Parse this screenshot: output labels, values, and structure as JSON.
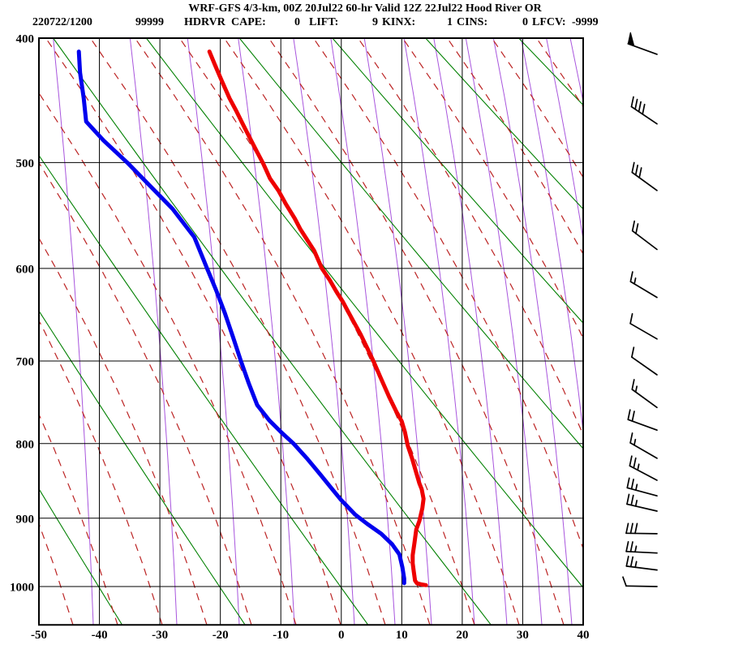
{
  "title": "WRF-GFS 4/3-km, 00Z 20Jul22 60-hr Valid 12Z 22Jul22 Hood River OR",
  "station_line": {
    "tokens": [
      {
        "x": 40,
        "text": "220722/1200"
      },
      {
        "x": 167,
        "text": "99999"
      },
      {
        "x": 227,
        "text": "HDRVR"
      },
      {
        "x": 285,
        "text": "CAPE:"
      },
      {
        "x": 363,
        "text": "0"
      },
      {
        "x": 381,
        "text": "LIFT:"
      },
      {
        "x": 459,
        "text": "9"
      },
      {
        "x": 471,
        "text": "KINX:"
      },
      {
        "x": 551,
        "text": "1"
      },
      {
        "x": 563,
        "text": "CINS:"
      },
      {
        "x": 644,
        "text": "0"
      },
      {
        "x": 656,
        "text": "LFCV:"
      },
      {
        "x": 705,
        "text": "-9999"
      }
    ],
    "indices": {
      "station": "220722/1200",
      "id": "99999",
      "site": "HDRVR",
      "cape": 0,
      "lift": 9,
      "kinx": 1,
      "cins": 0,
      "lfcv": -9999
    }
  },
  "colors": {
    "temperature": "#ee0000",
    "dewpoint": "#0000ee",
    "dry_adiabat": "#008000",
    "moist_adiabat": "#bb2222",
    "mixing_ratio": "#a855dd",
    "grid": "#000000"
  },
  "chart_data": {
    "type": "line",
    "diagram": "stuve-sounding",
    "title": "WRF-GFS 4/3-km, 00Z 20Jul22 60-hr Valid 12Z 22Jul22 Hood River OR",
    "xlabel": "",
    "ylabel": "",
    "x_ticks_c": [
      -50,
      -40,
      -30,
      -20,
      -10,
      0,
      10,
      20,
      30,
      40
    ],
    "y_ticks_hpa": [
      400,
      500,
      600,
      700,
      800,
      900,
      1000
    ],
    "xlim_c": [
      -50,
      40
    ],
    "ylim_hpa": [
      400,
      1060
    ],
    "grid": true,
    "series": [
      {
        "name": "temperature_c",
        "color": "#ee0000",
        "points": [
          [
            410,
            -21.8
          ],
          [
            420,
            -20.9
          ],
          [
            432,
            -19.8
          ],
          [
            446,
            -18.5
          ],
          [
            457,
            -17.3
          ],
          [
            468,
            -16.2
          ],
          [
            479,
            -15.1
          ],
          [
            491,
            -13.9
          ],
          [
            501,
            -12.9
          ],
          [
            514,
            -11.8
          ],
          [
            525,
            -10.4
          ],
          [
            538,
            -9.1
          ],
          [
            551,
            -7.7
          ],
          [
            561,
            -6.8
          ],
          [
            571,
            -5.7
          ],
          [
            582,
            -4.5
          ],
          [
            600,
            -3.2
          ],
          [
            612,
            -1.9
          ],
          [
            624,
            -0.8
          ],
          [
            635,
            0.3
          ],
          [
            646,
            1.2
          ],
          [
            658,
            2.2
          ],
          [
            670,
            3.2
          ],
          [
            684,
            4.2
          ],
          [
            700,
            5.3
          ],
          [
            721,
            6.6
          ],
          [
            742,
            7.9
          ],
          [
            760,
            9.1
          ],
          [
            772,
            10.0
          ],
          [
            785,
            10.5
          ],
          [
            803,
            11.0
          ],
          [
            819,
            11.7
          ],
          [
            838,
            12.4
          ],
          [
            852,
            12.9
          ],
          [
            860,
            13.3
          ],
          [
            873,
            13.6
          ],
          [
            886,
            13.4
          ],
          [
            904,
            12.9
          ],
          [
            916,
            12.4
          ],
          [
            935,
            12.1
          ],
          [
            953,
            11.8
          ],
          [
            965,
            11.8
          ],
          [
            978,
            12.0
          ],
          [
            991,
            12.2
          ],
          [
            995,
            12.5
          ],
          [
            997,
            13.3
          ],
          [
            998,
            14.0
          ]
        ]
      },
      {
        "name": "dewpoint_c",
        "color": "#0000ee",
        "points": [
          [
            410,
            -43.4
          ],
          [
            426,
            -43.2
          ],
          [
            446,
            -42.6
          ],
          [
            465,
            -42.2
          ],
          [
            481,
            -39.3
          ],
          [
            500,
            -35.4
          ],
          [
            521,
            -31.6
          ],
          [
            542,
            -27.9
          ],
          [
            569,
            -24.3
          ],
          [
            600,
            -22.2
          ],
          [
            624,
            -20.6
          ],
          [
            646,
            -19.3
          ],
          [
            673,
            -17.9
          ],
          [
            700,
            -16.6
          ],
          [
            726,
            -15.3
          ],
          [
            752,
            -13.9
          ],
          [
            771,
            -11.9
          ],
          [
            786,
            -9.9
          ],
          [
            800,
            -7.9
          ],
          [
            819,
            -5.7
          ],
          [
            840,
            -3.5
          ],
          [
            856,
            -1.9
          ],
          [
            874,
            -0.1
          ],
          [
            895,
            2.3
          ],
          [
            908,
            4.3
          ],
          [
            922,
            6.6
          ],
          [
            937,
            8.4
          ],
          [
            952,
            9.6
          ],
          [
            971,
            10.1
          ],
          [
            988,
            10.4
          ],
          [
            995,
            10.4
          ]
        ]
      }
    ],
    "winds": [
      {
        "p": 412,
        "kt": 50,
        "dir": 290
      },
      {
        "p": 467,
        "kt": 40,
        "dir": 304
      },
      {
        "p": 525,
        "kt": 30,
        "dir": 306
      },
      {
        "p": 581,
        "kt": 20,
        "dir": 307
      },
      {
        "p": 630,
        "kt": 15,
        "dir": 301
      },
      {
        "p": 675,
        "kt": 10,
        "dir": 300
      },
      {
        "p": 716,
        "kt": 10,
        "dir": 305
      },
      {
        "p": 755,
        "kt": 15,
        "dir": 306
      },
      {
        "p": 783,
        "kt": 20,
        "dir": 290
      },
      {
        "p": 819,
        "kt": 15,
        "dir": 300
      },
      {
        "p": 848,
        "kt": 25,
        "dir": 298
      },
      {
        "p": 869,
        "kt": 25,
        "dir": 285
      },
      {
        "p": 890,
        "kt": 25,
        "dir": 283
      },
      {
        "p": 922,
        "kt": 30,
        "dir": 271
      },
      {
        "p": 950,
        "kt": 25,
        "dir": 273
      },
      {
        "p": 975,
        "kt": 25,
        "dir": 277
      },
      {
        "p": 1000,
        "kt": 5,
        "dir": 271
      }
    ],
    "background": {
      "mixing_ratio_feet_x": [
        115,
        218,
        295,
        363,
        437,
        487,
        532,
        585,
        625,
        668,
        705,
        742,
        776,
        808,
        838,
        867,
        895
      ],
      "moist_adiabat_feet_x": {
        "start": 35,
        "step": 55,
        "count": 19
      },
      "dry_adiabat_theta_k": [
        233,
        253,
        273,
        293,
        313,
        333,
        353,
        373,
        393
      ]
    },
    "legend": false
  }
}
